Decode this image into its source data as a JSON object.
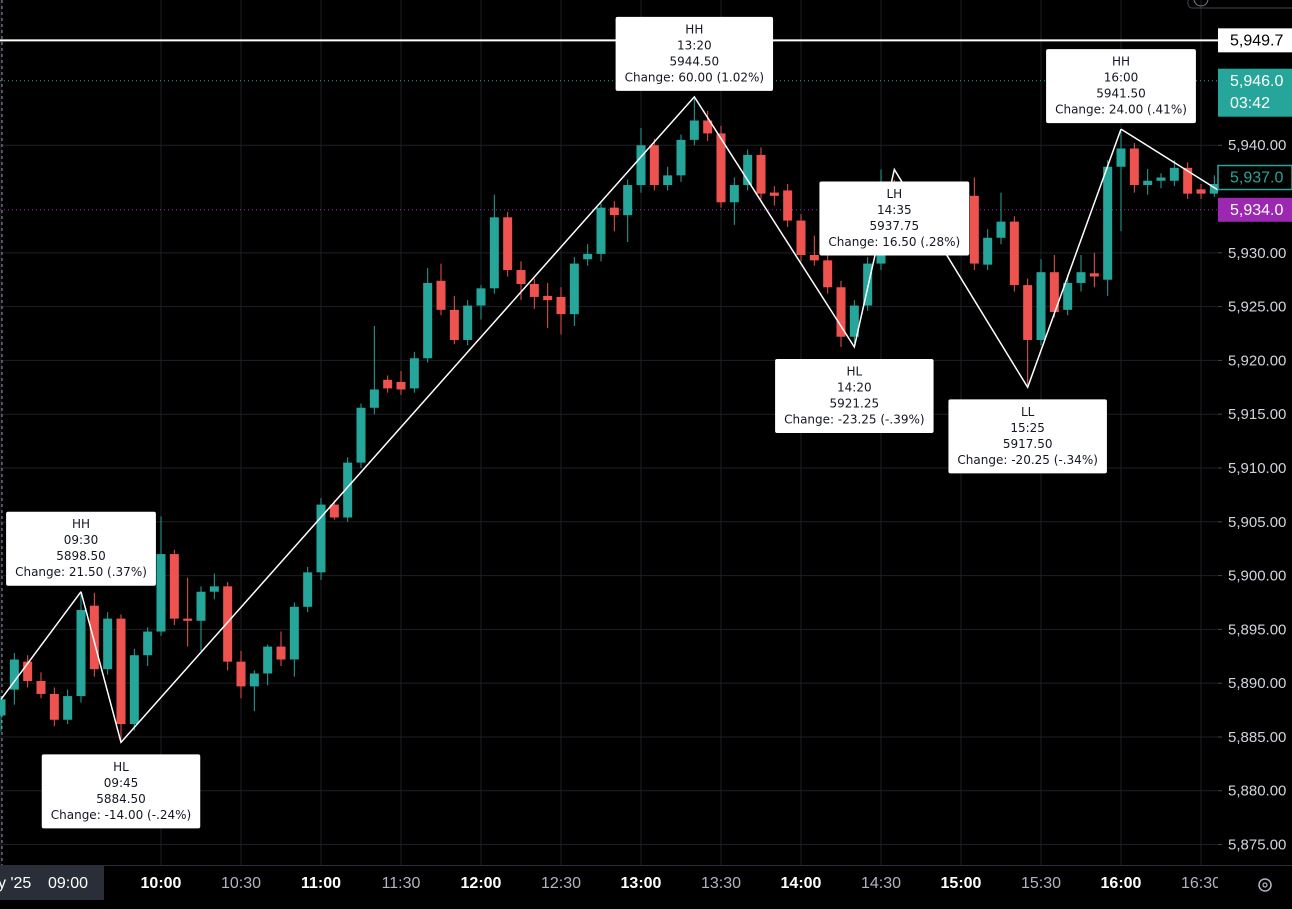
{
  "chart_data": {
    "type": "candlestick",
    "up_color": "#26a69a",
    "down_color": "#ef5350",
    "grid": true,
    "ylim": [
      5873.1,
      5953.5
    ],
    "yticks": [
      {
        "value": 5875,
        "label": "5,875.00"
      },
      {
        "value": 5880,
        "label": "5,880.00"
      },
      {
        "value": 5885,
        "label": "5,885.00"
      },
      {
        "value": 5890,
        "label": "5,890.00"
      },
      {
        "value": 5895,
        "label": "5,895.00"
      },
      {
        "value": 5900,
        "label": "5,900.00"
      },
      {
        "value": 5905,
        "label": "5,905.00"
      },
      {
        "value": 5910,
        "label": "5,910.00"
      },
      {
        "value": 5915,
        "label": "5,915.00"
      },
      {
        "value": 5920,
        "label": "5,920.00"
      },
      {
        "value": 5925,
        "label": "5,925.00"
      },
      {
        "value": 5930,
        "label": "5,930.00"
      },
      {
        "value": 5940,
        "label": "5,940.00"
      }
    ],
    "crosshair_date": "y '25",
    "categories": [
      "09:00",
      null,
      null,
      null,
      null,
      null,
      null,
      null,
      null,
      null,
      null,
      null,
      "10:00",
      null,
      null,
      null,
      null,
      null,
      "10:30",
      null,
      null,
      null,
      null,
      null,
      "11:00",
      null,
      null,
      null,
      null,
      null,
      "11:30",
      null,
      null,
      null,
      null,
      null,
      "12:00",
      null,
      null,
      null,
      null,
      null,
      "12:30",
      null,
      null,
      null,
      null,
      null,
      "13:00",
      null,
      null,
      null,
      null,
      null,
      "13:30",
      null,
      null,
      null,
      null,
      null,
      "14:00",
      null,
      null,
      null,
      null,
      null,
      "14:30",
      null,
      null,
      null,
      null,
      null,
      "15:00",
      null,
      null,
      null,
      null,
      null,
      "15:30",
      null,
      null,
      null,
      null,
      null,
      "16:00",
      null,
      null,
      null,
      null,
      null,
      "16:30",
      null
    ],
    "candles": {
      "open": [
        5887.0,
        5889.4,
        5892.0,
        5890.2,
        5889.0,
        5886.6,
        5888.8,
        5897.2,
        5891.3,
        5896.0,
        5886.2,
        5892.6,
        5894.8,
        5902.0,
        5896.0,
        5895.8,
        5898.5,
        5899.0,
        5892.0,
        5889.7,
        5890.9,
        5893.4,
        5892.2,
        5897.1,
        5900.3,
        5906.6,
        5905.4,
        5910.5,
        5915.6,
        5918.2,
        5918.0,
        5917.4,
        5920.2,
        5927.4,
        5924.7,
        5921.9,
        5925.1,
        5926.7,
        5933.3,
        5928.4,
        5927.1,
        5926.0,
        5925.9,
        5924.3,
        5929.4,
        5929.9,
        5934.2,
        5933.5,
        5936.3,
        5940.0,
        5936.3,
        5937.2,
        5940.5,
        5942.3,
        5941.1,
        5934.7,
        5936.3,
        5939.1,
        5935.6,
        5935.8,
        5933.0,
        5929.8,
        5929.3,
        5926.8,
        5922.2,
        5925.1,
        5929.0,
        5935.3,
        5935.3,
        5934.4,
        5933.5,
        5931.7,
        5932.4,
        5935.3,
        5928.9,
        5931.4,
        5932.9,
        5927.0,
        5921.9,
        5928.2,
        5924.7,
        5927.2,
        5928.1,
        5927.5,
        5938.0,
        5939.7,
        5936.3,
        5936.7,
        5936.7,
        5937.9,
        5935.9,
        5935.5
      ],
      "high": [
        5888.8,
        5892.8,
        5892.6,
        5891.0,
        5889.6,
        5889.4,
        5898.5,
        5898.4,
        5896.6,
        5896.4,
        5893.2,
        5895.2,
        5905.5,
        5902.4,
        5899.8,
        5899.0,
        5900.2,
        5899.4,
        5893.0,
        5891.2,
        5893.6,
        5894.8,
        5897.5,
        5900.8,
        5907.2,
        5907.0,
        5911.0,
        5916.0,
        5923.2,
        5918.6,
        5919.0,
        5920.8,
        5928.6,
        5929.0,
        5926.0,
        5925.6,
        5927.0,
        5935.4,
        5933.8,
        5929.2,
        5927.6,
        5927.2,
        5926.8,
        5929.6,
        5930.8,
        5934.6,
        5934.8,
        5936.8,
        5941.6,
        5940.6,
        5938.0,
        5941.0,
        5944.5,
        5943.2,
        5941.8,
        5937.0,
        5939.6,
        5939.8,
        5936.2,
        5936.4,
        5933.6,
        5931.6,
        5930.0,
        5927.4,
        5925.6,
        5929.6,
        5937.75,
        5936.8,
        5936.4,
        5935.2,
        5934.0,
        5933.2,
        5936.6,
        5937.0,
        5932.2,
        5935.6,
        5933.4,
        5927.6,
        5929.4,
        5929.8,
        5928.0,
        5929.8,
        5930.0,
        5938.6,
        5941.5,
        5940.2,
        5937.8,
        5937.4,
        5938.6,
        5938.4,
        5936.4,
        5937.2
      ],
      "low": [
        5885.5,
        5888.0,
        5889.6,
        5888.6,
        5886.0,
        5886.2,
        5888.2,
        5890.6,
        5890.8,
        5884.5,
        5885.6,
        5891.6,
        5894.4,
        5895.4,
        5893.4,
        5893.0,
        5897.8,
        5891.2,
        5888.6,
        5887.4,
        5889.8,
        5891.6,
        5890.6,
        5896.6,
        5899.6,
        5905.2,
        5905.0,
        5910.0,
        5915.0,
        5917.0,
        5916.8,
        5917.0,
        5919.8,
        5924.2,
        5921.5,
        5921.4,
        5923.8,
        5926.2,
        5927.8,
        5925.6,
        5924.8,
        5923.0,
        5922.4,
        5923.2,
        5928.8,
        5929.2,
        5932.0,
        5931.0,
        5935.6,
        5935.8,
        5935.8,
        5936.6,
        5940.0,
        5940.4,
        5934.2,
        5932.6,
        5935.8,
        5935.0,
        5934.4,
        5932.4,
        5929.2,
        5928.8,
        5926.2,
        5921.25,
        5921.6,
        5924.6,
        5928.4,
        5934.4,
        5932.0,
        5932.6,
        5930.6,
        5930.8,
        5931.8,
        5928.4,
        5928.4,
        5930.8,
        5926.4,
        5917.5,
        5921.4,
        5924.0,
        5924.2,
        5926.4,
        5926.8,
        5926.0,
        5932.0,
        5935.6,
        5935.4,
        5936.0,
        5936.2,
        5935.0,
        5935.0,
        5935.2
      ],
      "close": [
        5888.5,
        5892.2,
        5890.2,
        5889.0,
        5886.6,
        5888.8,
        5896.8,
        5891.3,
        5896.0,
        5886.2,
        5892.6,
        5894.8,
        5902.0,
        5896.0,
        5895.8,
        5898.5,
        5899.0,
        5892.0,
        5889.7,
        5890.9,
        5893.4,
        5892.2,
        5897.1,
        5900.3,
        5906.6,
        5905.4,
        5910.5,
        5915.6,
        5917.3,
        5917.4,
        5917.3,
        5920.2,
        5927.2,
        5924.7,
        5921.9,
        5925.1,
        5926.7,
        5933.3,
        5928.4,
        5927.1,
        5925.9,
        5925.6,
        5924.3,
        5929.0,
        5929.9,
        5934.2,
        5933.5,
        5936.3,
        5940.0,
        5936.3,
        5937.2,
        5940.5,
        5942.3,
        5941.1,
        5934.7,
        5936.3,
        5939.1,
        5935.5,
        5935.3,
        5933.0,
        5929.8,
        5929.3,
        5926.8,
        5922.2,
        5925.1,
        5929.0,
        5935.3,
        5935.0,
        5934.4,
        5933.5,
        5932.0,
        5932.4,
        5935.3,
        5929.0,
        5931.4,
        5932.9,
        5927.0,
        5921.9,
        5928.2,
        5924.5,
        5927.2,
        5928.2,
        5927.8,
        5938.0,
        5939.7,
        5936.3,
        5936.7,
        5937.0,
        5937.9,
        5935.5,
        5935.5,
        5936.4
      ]
    },
    "zigzag_color": "#ffffff",
    "pivots": [
      {
        "kind": "HH",
        "time": "09:30",
        "price": {
          "value": 5898.5,
          "label": "5898.50"
        },
        "change": "Change: 21.50 (.37%)"
      },
      {
        "kind": "HL",
        "time": "09:45",
        "price": {
          "value": 5884.5,
          "label": "5884.50"
        },
        "change": "Change: -14.00 (-.24%)"
      },
      {
        "kind": "HH",
        "time": "13:20",
        "price": {
          "value": 5944.5,
          "label": "5944.50"
        },
        "change": "Change: 60.00 (1.02%)"
      },
      {
        "kind": "HL",
        "time": "14:20",
        "price": {
          "value": 5921.25,
          "label": "5921.25"
        },
        "change": "Change: -23.25 (-.39%)"
      },
      {
        "kind": "LH",
        "time": "14:35",
        "price": {
          "value": 5937.75,
          "label": "5937.75"
        },
        "change": "Change: 16.50 (.28%)"
      },
      {
        "kind": "LL",
        "time": "15:25",
        "price": {
          "value": 5917.5,
          "label": "5917.50"
        },
        "change": "Change: -20.25 (-.34%)"
      },
      {
        "kind": "HH",
        "time": "16:00",
        "price": {
          "value": 5941.5,
          "label": "5941.50"
        },
        "change": "Change: 24.00 (.41%)"
      }
    ],
    "price_lines": [
      {
        "value": 5949.75,
        "label": "5,949.7",
        "color": "#ffffff",
        "line": "solid",
        "label_style": "filled",
        "text_color": "#000000"
      },
      {
        "value": 5946,
        "label": "5,946.0",
        "countdown": "03:42",
        "color": "#26a69a",
        "line": "dotted",
        "label_style": "filled",
        "text_color": "#ffffff"
      },
      {
        "value": 5937,
        "label": "5,937.0",
        "color": "#26a69a",
        "line": "none",
        "label_style": "outline",
        "text_color": "#26a69a"
      },
      {
        "value": 5934,
        "label": "5,934.0",
        "color": "#9c27b0",
        "line": "dotted",
        "label_style": "filled",
        "text_color": "#ffffff"
      }
    ]
  }
}
